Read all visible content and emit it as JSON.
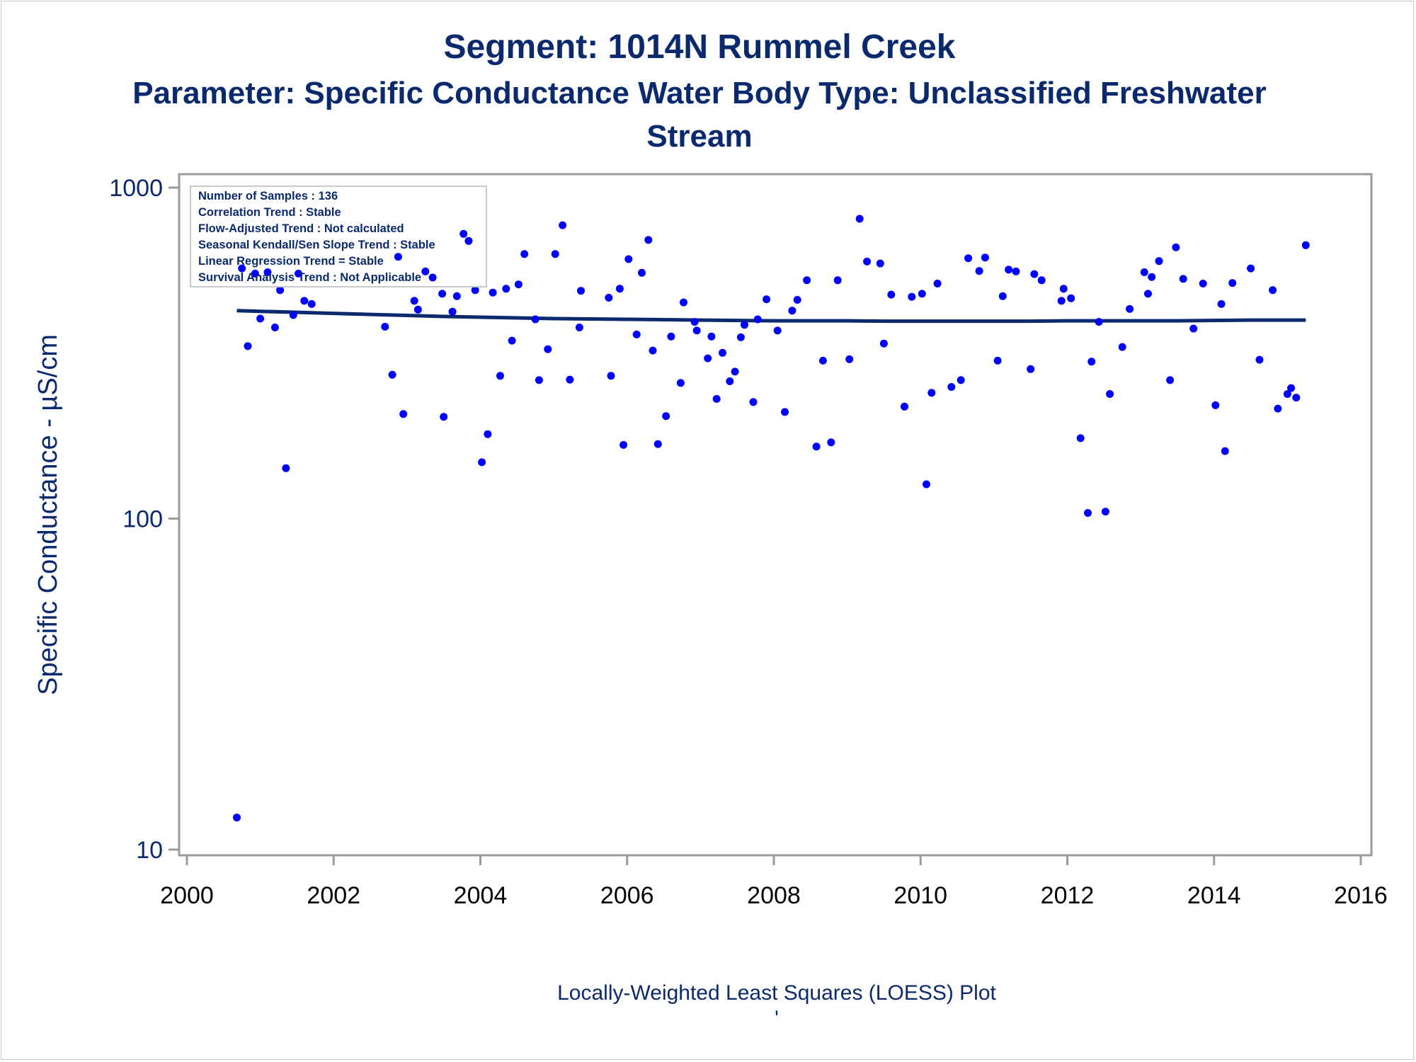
{
  "chart_data": {
    "type": "scatter",
    "title": "Segment: 1014N  Rummel Creek",
    "subtitle_lines": [
      "Parameter: Specific Conductance   Water Body Type: Unclassified Freshwater",
      "Stream"
    ],
    "xlabel": "",
    "ylabel": "Specific Conductance -  µS/cm",
    "footnote": "Locally-Weighted Least Squares (LOESS) Plot",
    "footnote_mark": "'",
    "xlim": [
      2000,
      2016
    ],
    "ylim": [
      10,
      1000
    ],
    "yscale": "log",
    "x_ticks": [
      "2000",
      "2002",
      "2004",
      "2006",
      "2008",
      "2010",
      "2012",
      "2014",
      "2016"
    ],
    "y_ticks": [
      "10",
      "100",
      "1000"
    ],
    "grid": false,
    "colors": {
      "points": "#0000ff",
      "loess": "#0b2a6e",
      "text": "#0b2a6e",
      "axis": "#9a9a9a"
    },
    "stats_box": [
      "Number of Samples : 136",
      "Correlation Trend : Stable",
      "Flow-Adjusted Trend : Not calculated",
      "Seasonal Kendall/Sen Slope Trend : Stable",
      "Linear Regression Trend = Stable",
      "Survival Analysis Trend : Not Applicable"
    ],
    "series": [
      {
        "type": "scatter",
        "points": [
          [
            2000.68,
            12.5
          ],
          [
            2000.75,
            570
          ],
          [
            2000.83,
            332
          ],
          [
            2000.93,
            550
          ],
          [
            2001.0,
            402
          ],
          [
            2001.1,
            555
          ],
          [
            2001.2,
            378
          ],
          [
            2001.27,
            490
          ],
          [
            2001.35,
            142
          ],
          [
            2001.45,
            412
          ],
          [
            2001.52,
            550
          ],
          [
            2001.6,
            455
          ],
          [
            2001.7,
            445
          ],
          [
            2002.7,
            380
          ],
          [
            2002.8,
            272
          ],
          [
            2002.88,
            618
          ],
          [
            2002.95,
            207
          ],
          [
            2003.1,
            455
          ],
          [
            2003.15,
            428
          ],
          [
            2003.25,
            558
          ],
          [
            2003.35,
            535
          ],
          [
            2003.48,
            478
          ],
          [
            2003.5,
            203
          ],
          [
            2003.62,
            422
          ],
          [
            2003.68,
            470
          ],
          [
            2003.77,
            725
          ],
          [
            2003.84,
            690
          ],
          [
            2003.93,
            490
          ],
          [
            2004.02,
            148
          ],
          [
            2004.1,
            180
          ],
          [
            2004.17,
            482
          ],
          [
            2004.27,
            270
          ],
          [
            2004.35,
            495
          ],
          [
            2004.43,
            345
          ],
          [
            2004.52,
            510
          ],
          [
            2004.6,
            630
          ],
          [
            2004.75,
            400
          ],
          [
            2004.8,
            262
          ],
          [
            2004.92,
            325
          ],
          [
            2005.02,
            630
          ],
          [
            2005.12,
            770
          ],
          [
            2005.22,
            263
          ],
          [
            2005.35,
            378
          ],
          [
            2005.37,
            488
          ],
          [
            2005.75,
            465
          ],
          [
            2005.78,
            270
          ],
          [
            2005.9,
            495
          ],
          [
            2005.95,
            167
          ],
          [
            2006.02,
            608
          ],
          [
            2006.13,
            360
          ],
          [
            2006.2,
            553
          ],
          [
            2006.29,
            695
          ],
          [
            2006.35,
            322
          ],
          [
            2006.42,
            168
          ],
          [
            2006.53,
            204
          ],
          [
            2006.6,
            355
          ],
          [
            2006.73,
            257
          ],
          [
            2006.77,
            450
          ],
          [
            2006.92,
            393
          ],
          [
            2006.95,
            370
          ],
          [
            2007.1,
            305
          ],
          [
            2007.15,
            355
          ],
          [
            2007.22,
            230
          ],
          [
            2007.3,
            317
          ],
          [
            2007.4,
            260
          ],
          [
            2007.47,
            278
          ],
          [
            2007.55,
            353
          ],
          [
            2007.6,
            385
          ],
          [
            2007.72,
            225
          ],
          [
            2007.78,
            400
          ],
          [
            2007.9,
            460
          ],
          [
            2008.05,
            370
          ],
          [
            2008.15,
            210
          ],
          [
            2008.25,
            425
          ],
          [
            2008.32,
            458
          ],
          [
            2008.45,
            525
          ],
          [
            2008.58,
            165
          ],
          [
            2008.67,
            300
          ],
          [
            2008.78,
            170
          ],
          [
            2008.87,
            525
          ],
          [
            2009.03,
            303
          ],
          [
            2009.17,
            805
          ],
          [
            2009.27,
            598
          ],
          [
            2009.45,
            590
          ],
          [
            2009.5,
            338
          ],
          [
            2009.6,
            475
          ],
          [
            2009.78,
            218
          ],
          [
            2009.88,
            468
          ],
          [
            2010.02,
            478
          ],
          [
            2010.08,
            127
          ],
          [
            2010.15,
            240
          ],
          [
            2010.23,
            513
          ],
          [
            2010.42,
            250
          ],
          [
            2010.55,
            262
          ],
          [
            2010.65,
            612
          ],
          [
            2010.8,
            560
          ],
          [
            2010.88,
            615
          ],
          [
            2011.05,
            300
          ],
          [
            2011.12,
            470
          ],
          [
            2011.2,
            565
          ],
          [
            2011.3,
            558
          ],
          [
            2011.5,
            283
          ],
          [
            2011.55,
            548
          ],
          [
            2011.65,
            525
          ],
          [
            2011.92,
            455
          ],
          [
            2011.95,
            495
          ],
          [
            2012.05,
            463
          ],
          [
            2012.18,
            175
          ],
          [
            2012.28,
            104
          ],
          [
            2012.33,
            298
          ],
          [
            2012.43,
            393
          ],
          [
            2012.52,
            105
          ],
          [
            2012.58,
            238
          ],
          [
            2012.75,
            330
          ],
          [
            2012.85,
            430
          ],
          [
            2013.05,
            555
          ],
          [
            2013.1,
            478
          ],
          [
            2013.15,
            537
          ],
          [
            2013.25,
            600
          ],
          [
            2013.4,
            262
          ],
          [
            2013.48,
            660
          ],
          [
            2013.58,
            530
          ],
          [
            2013.72,
            375
          ],
          [
            2013.85,
            513
          ],
          [
            2014.02,
            220
          ],
          [
            2014.1,
            445
          ],
          [
            2014.15,
            160
          ],
          [
            2014.25,
            515
          ],
          [
            2014.5,
            570
          ],
          [
            2014.62,
            302
          ],
          [
            2014.8,
            490
          ],
          [
            2014.87,
            215
          ],
          [
            2015.0,
            238
          ],
          [
            2015.05,
            248
          ],
          [
            2015.12,
            232
          ],
          [
            2015.25,
            670
          ]
        ]
      },
      {
        "type": "line",
        "name": "",
        "points": [
          [
            2000.68,
            425
          ],
          [
            2001.0,
            423
          ],
          [
            2001.5,
            420
          ],
          [
            2002.0,
            417
          ],
          [
            2002.5,
            414
          ],
          [
            2003.0,
            411
          ],
          [
            2003.5,
            408
          ],
          [
            2004.0,
            406
          ],
          [
            2004.5,
            404
          ],
          [
            2005.0,
            402
          ],
          [
            2005.5,
            401
          ],
          [
            2006.0,
            400
          ],
          [
            2006.5,
            399
          ],
          [
            2007.0,
            398
          ],
          [
            2007.5,
            397
          ],
          [
            2008.0,
            396
          ],
          [
            2008.5,
            396
          ],
          [
            2009.0,
            396
          ],
          [
            2009.5,
            395
          ],
          [
            2010.0,
            395
          ],
          [
            2010.5,
            395
          ],
          [
            2011.0,
            395
          ],
          [
            2011.5,
            395
          ],
          [
            2012.0,
            396
          ],
          [
            2012.5,
            396
          ],
          [
            2013.0,
            396
          ],
          [
            2013.5,
            396
          ],
          [
            2014.0,
            397
          ],
          [
            2014.5,
            398
          ],
          [
            2015.0,
            398
          ],
          [
            2015.25,
            398
          ]
        ]
      }
    ]
  }
}
